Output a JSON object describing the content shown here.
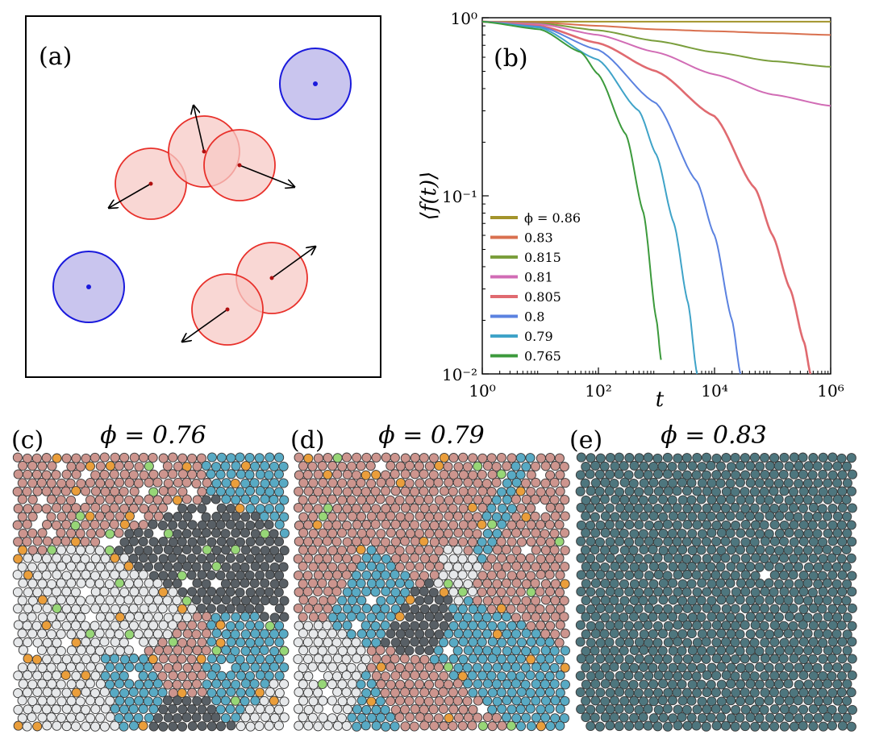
{
  "panels": {
    "a": {
      "label": "(a)"
    },
    "b": {
      "label": "(b)"
    },
    "c": {
      "label": "(c)",
      "title": "ϕ = 0.76"
    },
    "d": {
      "label": "(d)",
      "title": "ϕ = 0.79"
    },
    "e": {
      "label": "(e)",
      "title": "ϕ = 0.83"
    }
  },
  "colors": {
    "active": "#e8302a",
    "active_fill": "#f7c9c6",
    "passive": "#1a1adc",
    "passive_fill": "#c9c5ee",
    "crystal_red": "#c98c84",
    "crystal_dark": "#4a5158",
    "crystal_cyan": "#4aa3bf",
    "crystal_white": "#e4e6e8",
    "defect_orange": "#e8962a",
    "defect_green": "#8ed36b",
    "e_particles": "#3f6a73"
  },
  "chart_data": {
    "type": "line",
    "xscale": "log",
    "yscale": "log",
    "xlim": [
      1,
      1000000
    ],
    "ylim": [
      0.01,
      1
    ],
    "xlabel": "t",
    "ylabel": "⟨f(t)⟩",
    "xticks": [
      "10⁰",
      "10²",
      "10⁴",
      "10⁶"
    ],
    "yticks": [
      "10⁰",
      "10⁻¹",
      "10⁻²"
    ],
    "series": [
      {
        "name": "ϕ = 0.86",
        "color": "#a3942b",
        "x": [
          1,
          10,
          100,
          1000,
          10000,
          100000,
          1000000
        ],
        "y": [
          0.95,
          0.95,
          0.95,
          0.95,
          0.95,
          0.95,
          0.95
        ]
      },
      {
        "name": "0.83",
        "color": "#d9704f",
        "x": [
          1,
          10,
          100,
          1000,
          10000,
          100000,
          1000000
        ],
        "y": [
          0.95,
          0.94,
          0.9,
          0.86,
          0.84,
          0.82,
          0.8
        ]
      },
      {
        "name": "0.815",
        "color": "#7a9e3c",
        "x": [
          1,
          10,
          100,
          1000,
          10000,
          100000,
          1000000
        ],
        "y": [
          0.95,
          0.93,
          0.85,
          0.74,
          0.64,
          0.57,
          0.53
        ]
      },
      {
        "name": "0.81",
        "color": "#d16cb5",
        "x": [
          1,
          10,
          100,
          1000,
          10000,
          100000,
          1000000
        ],
        "y": [
          0.95,
          0.92,
          0.8,
          0.64,
          0.48,
          0.37,
          0.32
        ]
      },
      {
        "name": "0.805",
        "color": "#e06a70",
        "x": [
          1,
          10,
          100,
          1000,
          10000,
          50000,
          100000,
          200000,
          350000,
          450000
        ],
        "y": [
          0.95,
          0.9,
          0.72,
          0.5,
          0.28,
          0.11,
          0.06,
          0.03,
          0.015,
          0.01
        ]
      },
      {
        "name": "0.8",
        "color": "#5b82e0",
        "x": [
          1,
          10,
          100,
          1000,
          5000,
          10000,
          20000,
          28000
        ],
        "y": [
          0.95,
          0.89,
          0.66,
          0.33,
          0.12,
          0.06,
          0.02,
          0.01
        ]
      },
      {
        "name": "0.79",
        "color": "#3fa3c8",
        "x": [
          1,
          10,
          100,
          500,
          1000,
          2000,
          3500,
          5000
        ],
        "y": [
          0.95,
          0.88,
          0.58,
          0.3,
          0.17,
          0.07,
          0.025,
          0.01
        ]
      },
      {
        "name": "0.765",
        "color": "#3c9a3c",
        "x": [
          1,
          10,
          50,
          100,
          300,
          600,
          1000,
          1200
        ],
        "y": [
          0.95,
          0.86,
          0.64,
          0.48,
          0.22,
          0.08,
          0.02,
          0.012
        ]
      }
    ]
  }
}
